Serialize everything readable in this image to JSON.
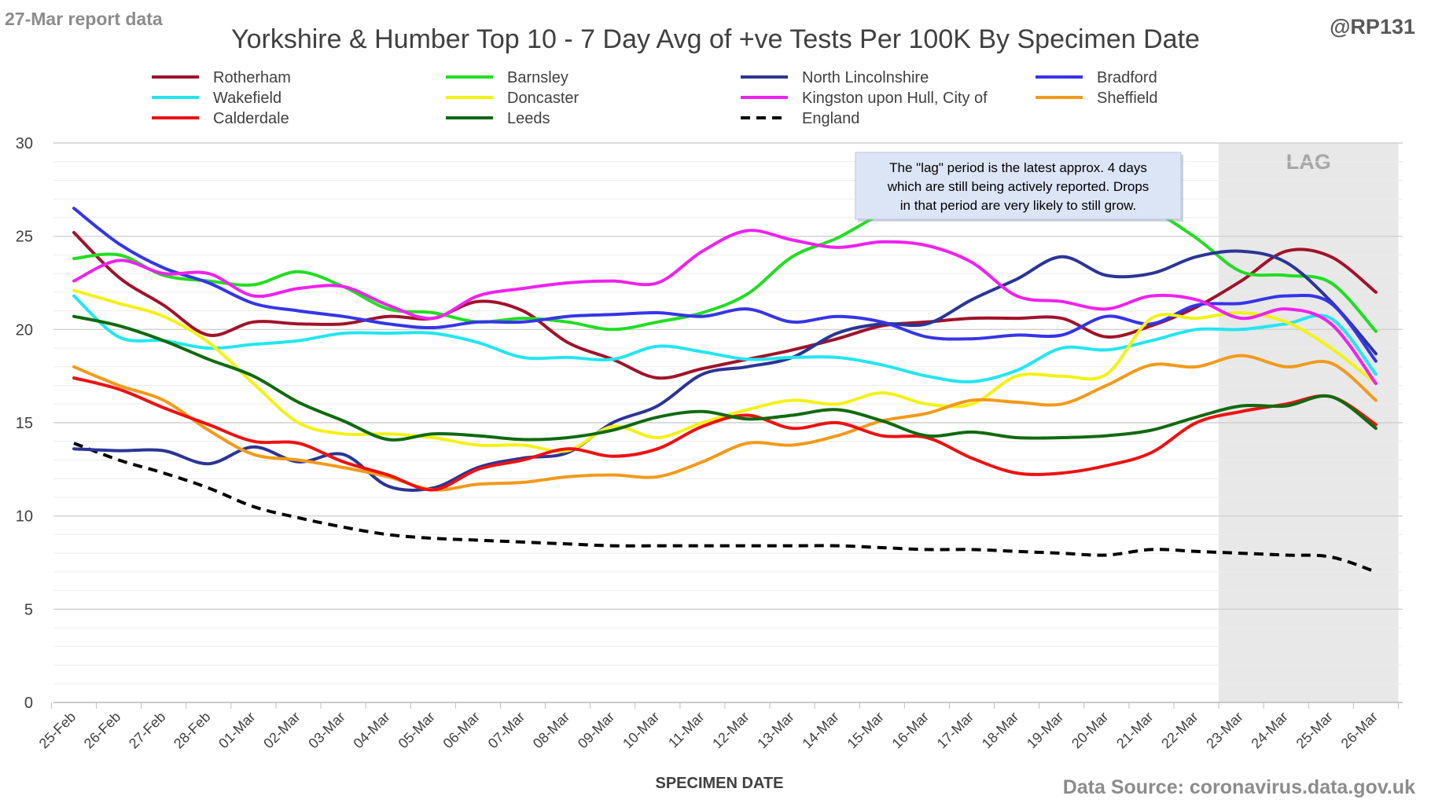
{
  "header": {
    "report_note": "27-Mar report data",
    "handle": "@RP131",
    "source": "Data Source: coronavirus.data.gov.uk"
  },
  "chart_data": {
    "type": "line",
    "title": "Yorkshire & Humber Top 10 - 7 Day Avg of +ve Tests Per 100K By Specimen Date",
    "xlabel": "SPECIMEN DATE",
    "ylabel": "",
    "ylim": [
      0,
      30
    ],
    "yticks": [
      0,
      5,
      10,
      15,
      20,
      25,
      30
    ],
    "grid": true,
    "legend_position": "top",
    "categories": [
      "25-Feb",
      "26-Feb",
      "27-Feb",
      "28-Feb",
      "01-Mar",
      "02-Mar",
      "03-Mar",
      "04-Mar",
      "05-Mar",
      "06-Mar",
      "07-Mar",
      "08-Mar",
      "09-Mar",
      "10-Mar",
      "11-Mar",
      "12-Mar",
      "13-Mar",
      "14-Mar",
      "15-Mar",
      "16-Mar",
      "17-Mar",
      "18-Mar",
      "19-Mar",
      "20-Mar",
      "21-Mar",
      "22-Mar",
      "23-Mar",
      "24-Mar",
      "25-Mar",
      "26-Mar"
    ],
    "lag": {
      "start": "23-Mar",
      "end": "26-Mar",
      "label": "LAG",
      "note": "The \"lag\" period is the latest approx. 4 days which are still being actively reported. Drops in that period are very likely to still grow."
    },
    "series": [
      {
        "name": "Rotherham",
        "color": "#a0132a",
        "dash": false,
        "values": [
          25.2,
          22.8,
          21.3,
          19.7,
          20.4,
          20.3,
          20.3,
          20.7,
          20.6,
          21.5,
          21.0,
          19.3,
          18.4,
          17.4,
          17.9,
          18.4,
          18.9,
          19.5,
          20.2,
          20.4,
          20.6,
          20.6,
          20.6,
          19.6,
          20.2,
          21.2,
          22.6,
          24.2,
          23.9,
          22.0
        ]
      },
      {
        "name": "Barnsley",
        "color": "#22dd22",
        "dash": false,
        "values": [
          23.8,
          24.0,
          22.9,
          22.6,
          22.4,
          23.1,
          22.3,
          21.1,
          20.9,
          20.4,
          20.6,
          20.4,
          20.0,
          20.4,
          20.9,
          21.9,
          23.9,
          24.9,
          26.2,
          27.0,
          27.3,
          27.4,
          27.4,
          27.1,
          26.4,
          24.9,
          23.1,
          22.9,
          22.5,
          19.9
        ]
      },
      {
        "name": "North Lincolnshire",
        "color": "#2b3595",
        "dash": false,
        "values": [
          13.6,
          13.5,
          13.5,
          12.8,
          13.7,
          12.9,
          13.3,
          11.6,
          11.5,
          12.6,
          13.1,
          13.4,
          15.0,
          15.9,
          17.6,
          18.0,
          18.5,
          19.8,
          20.3,
          20.3,
          21.6,
          22.7,
          23.9,
          22.9,
          23.0,
          23.9,
          24.2,
          23.6,
          21.5,
          18.7
        ]
      },
      {
        "name": "Bradford",
        "color": "#3535e8",
        "dash": false,
        "values": [
          26.5,
          24.6,
          23.3,
          22.5,
          21.4,
          21.0,
          20.7,
          20.3,
          20.1,
          20.4,
          20.4,
          20.7,
          20.8,
          20.9,
          20.7,
          21.1,
          20.4,
          20.7,
          20.4,
          19.6,
          19.5,
          19.7,
          19.7,
          20.7,
          20.3,
          21.3,
          21.4,
          21.8,
          21.4,
          18.3
        ]
      },
      {
        "name": "Wakefield",
        "color": "#22e6f0",
        "dash": false,
        "values": [
          21.8,
          19.6,
          19.4,
          19.0,
          19.2,
          19.4,
          19.8,
          19.8,
          19.8,
          19.3,
          18.5,
          18.5,
          18.4,
          19.1,
          18.8,
          18.4,
          18.5,
          18.5,
          18.1,
          17.5,
          17.2,
          17.8,
          19.0,
          18.9,
          19.4,
          20.0,
          20.0,
          20.3,
          20.6,
          17.6
        ]
      },
      {
        "name": "Doncaster",
        "color": "#f2f216",
        "dash": false,
        "values": [
          22.1,
          21.4,
          20.7,
          19.3,
          17.1,
          15.0,
          14.4,
          14.4,
          14.2,
          13.8,
          13.8,
          13.5,
          14.8,
          14.2,
          15.0,
          15.7,
          16.2,
          16.0,
          16.6,
          16.0,
          16.0,
          17.5,
          17.5,
          17.6,
          20.6,
          20.6,
          20.9,
          20.4,
          19.0,
          17.1
        ]
      },
      {
        "name": "Kingston upon Hull, City of",
        "color": "#ee22ee",
        "dash": false,
        "values": [
          22.6,
          23.7,
          23.0,
          23.0,
          21.8,
          22.2,
          22.3,
          21.3,
          20.6,
          21.8,
          22.2,
          22.5,
          22.6,
          22.5,
          24.2,
          25.3,
          24.8,
          24.4,
          24.7,
          24.5,
          23.6,
          21.8,
          21.5,
          21.1,
          21.8,
          21.6,
          20.6,
          21.1,
          20.3,
          17.1
        ]
      },
      {
        "name": "Sheffield",
        "color": "#f29a1a",
        "dash": false,
        "values": [
          18.0,
          17.0,
          16.2,
          14.6,
          13.3,
          13.0,
          12.6,
          12.1,
          11.4,
          11.7,
          11.8,
          12.1,
          12.2,
          12.1,
          12.9,
          13.9,
          13.8,
          14.3,
          15.1,
          15.5,
          16.2,
          16.1,
          16.0,
          17.0,
          18.1,
          18.0,
          18.6,
          18.0,
          18.2,
          16.2
        ]
      },
      {
        "name": "Calderdale",
        "color": "#ee1111",
        "dash": false,
        "values": [
          17.4,
          16.8,
          15.8,
          14.9,
          14.0,
          13.9,
          12.9,
          12.2,
          11.4,
          12.5,
          13.0,
          13.6,
          13.2,
          13.6,
          14.8,
          15.4,
          14.7,
          15.0,
          14.3,
          14.2,
          13.1,
          12.3,
          12.3,
          12.7,
          13.4,
          15.0,
          15.6,
          16.0,
          16.4,
          14.9
        ]
      },
      {
        "name": "Leeds",
        "color": "#0f6a0f",
        "dash": false,
        "values": [
          20.7,
          20.2,
          19.4,
          18.4,
          17.5,
          16.1,
          15.1,
          14.1,
          14.4,
          14.3,
          14.1,
          14.2,
          14.6,
          15.3,
          15.6,
          15.2,
          15.4,
          15.7,
          15.1,
          14.3,
          14.5,
          14.2,
          14.2,
          14.3,
          14.6,
          15.3,
          15.9,
          15.9,
          16.4,
          14.7
        ]
      },
      {
        "name": "England",
        "color": "#000000",
        "dash": true,
        "values": [
          13.9,
          13.0,
          12.3,
          11.5,
          10.5,
          9.9,
          9.4,
          9.0,
          8.8,
          8.7,
          8.6,
          8.5,
          8.4,
          8.4,
          8.4,
          8.4,
          8.4,
          8.4,
          8.3,
          8.2,
          8.2,
          8.1,
          8.0,
          7.9,
          8.2,
          8.1,
          8.0,
          7.9,
          7.8,
          7.0
        ]
      }
    ]
  }
}
